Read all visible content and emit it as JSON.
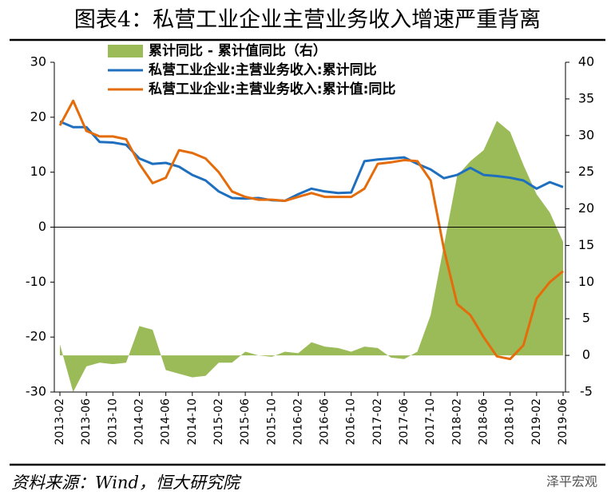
{
  "chart_data": {
    "type": "line",
    "title": "图表4：私营工业企业主营业务收入增速严重背离",
    "source": "资料来源：Wind，恒大研究院",
    "watermark": "泽平宏观",
    "categories": [
      "2013-02",
      null,
      "2013-06",
      null,
      "2013-10",
      null,
      "2014-02",
      null,
      "2014-06",
      null,
      "2014-10",
      null,
      "2015-02",
      null,
      "2015-06",
      null,
      "2015-10",
      null,
      "2016-02",
      null,
      "2016-06",
      null,
      "2016-10",
      null,
      "2017-02",
      null,
      "2017-06",
      null,
      "2017-10",
      null,
      "2018-02",
      null,
      "2018-06",
      null,
      "2018-10",
      null,
      "2019-02",
      null,
      "2019-06"
    ],
    "series": [
      {
        "name": "累计同比 - 累计值同比（右）",
        "type": "area",
        "axis": "y2",
        "color": "#9bbb59",
        "values": [
          1.5,
          -5.0,
          -1.5,
          -1.0,
          -1.2,
          -1.0,
          4.0,
          3.5,
          -2.0,
          -2.5,
          -3.0,
          -2.8,
          -1.0,
          -1.0,
          0.5,
          0,
          -0.2,
          0.5,
          0.3,
          1.8,
          1.2,
          1.0,
          0.5,
          1.2,
          1.0,
          -0.3,
          -0.5,
          0.5,
          5.5,
          15.0,
          24.5,
          26.5,
          28.0,
          32.0,
          30.5,
          26.0,
          22.0,
          19.5,
          15.5
        ]
      },
      {
        "name": "私营工业企业:主营业务收入:累计同比",
        "type": "line",
        "color": "#1f6fbf",
        "values": [
          19.2,
          18.2,
          18.2,
          15.5,
          15.4,
          15.0,
          12.5,
          11.5,
          11.7,
          11.0,
          9.5,
          8.5,
          6.5,
          5.3,
          5.2,
          5.3,
          4.9,
          4.8,
          6.0,
          7.0,
          6.5,
          6.2,
          6.3,
          12.0,
          12.3,
          12.5,
          12.7,
          11.5,
          10.5,
          8.9,
          9.5,
          10.8,
          9.5,
          9.3,
          9.0,
          8.5,
          7.0,
          8.2,
          7.3
        ]
      },
      {
        "name": "私营工业企业:主营业务收入:累计值:同比",
        "type": "line",
        "color": "#e46c0a",
        "values": [
          18.5,
          23.0,
          17.5,
          16.5,
          16.5,
          16.0,
          11.5,
          8.0,
          9.0,
          14.0,
          13.5,
          12.5,
          10.0,
          6.5,
          5.5,
          5.0,
          5.0,
          4.8,
          5.5,
          6.2,
          5.5,
          5.5,
          5.5,
          7.0,
          11.5,
          11.8,
          12.2,
          12.0,
          8.5,
          -4.0,
          -14.0,
          -16.0,
          -20.0,
          -23.5,
          -24.0,
          -21.5,
          -13.0,
          -10.0,
          -8.0
        ]
      }
    ],
    "ylim": [
      -30,
      30
    ],
    "yticks": [
      -30,
      -20,
      -10,
      0,
      10,
      20,
      30
    ],
    "y2lim": [
      -5,
      40
    ],
    "y2ticks": [
      -5,
      0,
      5,
      10,
      15,
      20,
      25,
      30,
      35,
      40
    ],
    "grid": false
  }
}
